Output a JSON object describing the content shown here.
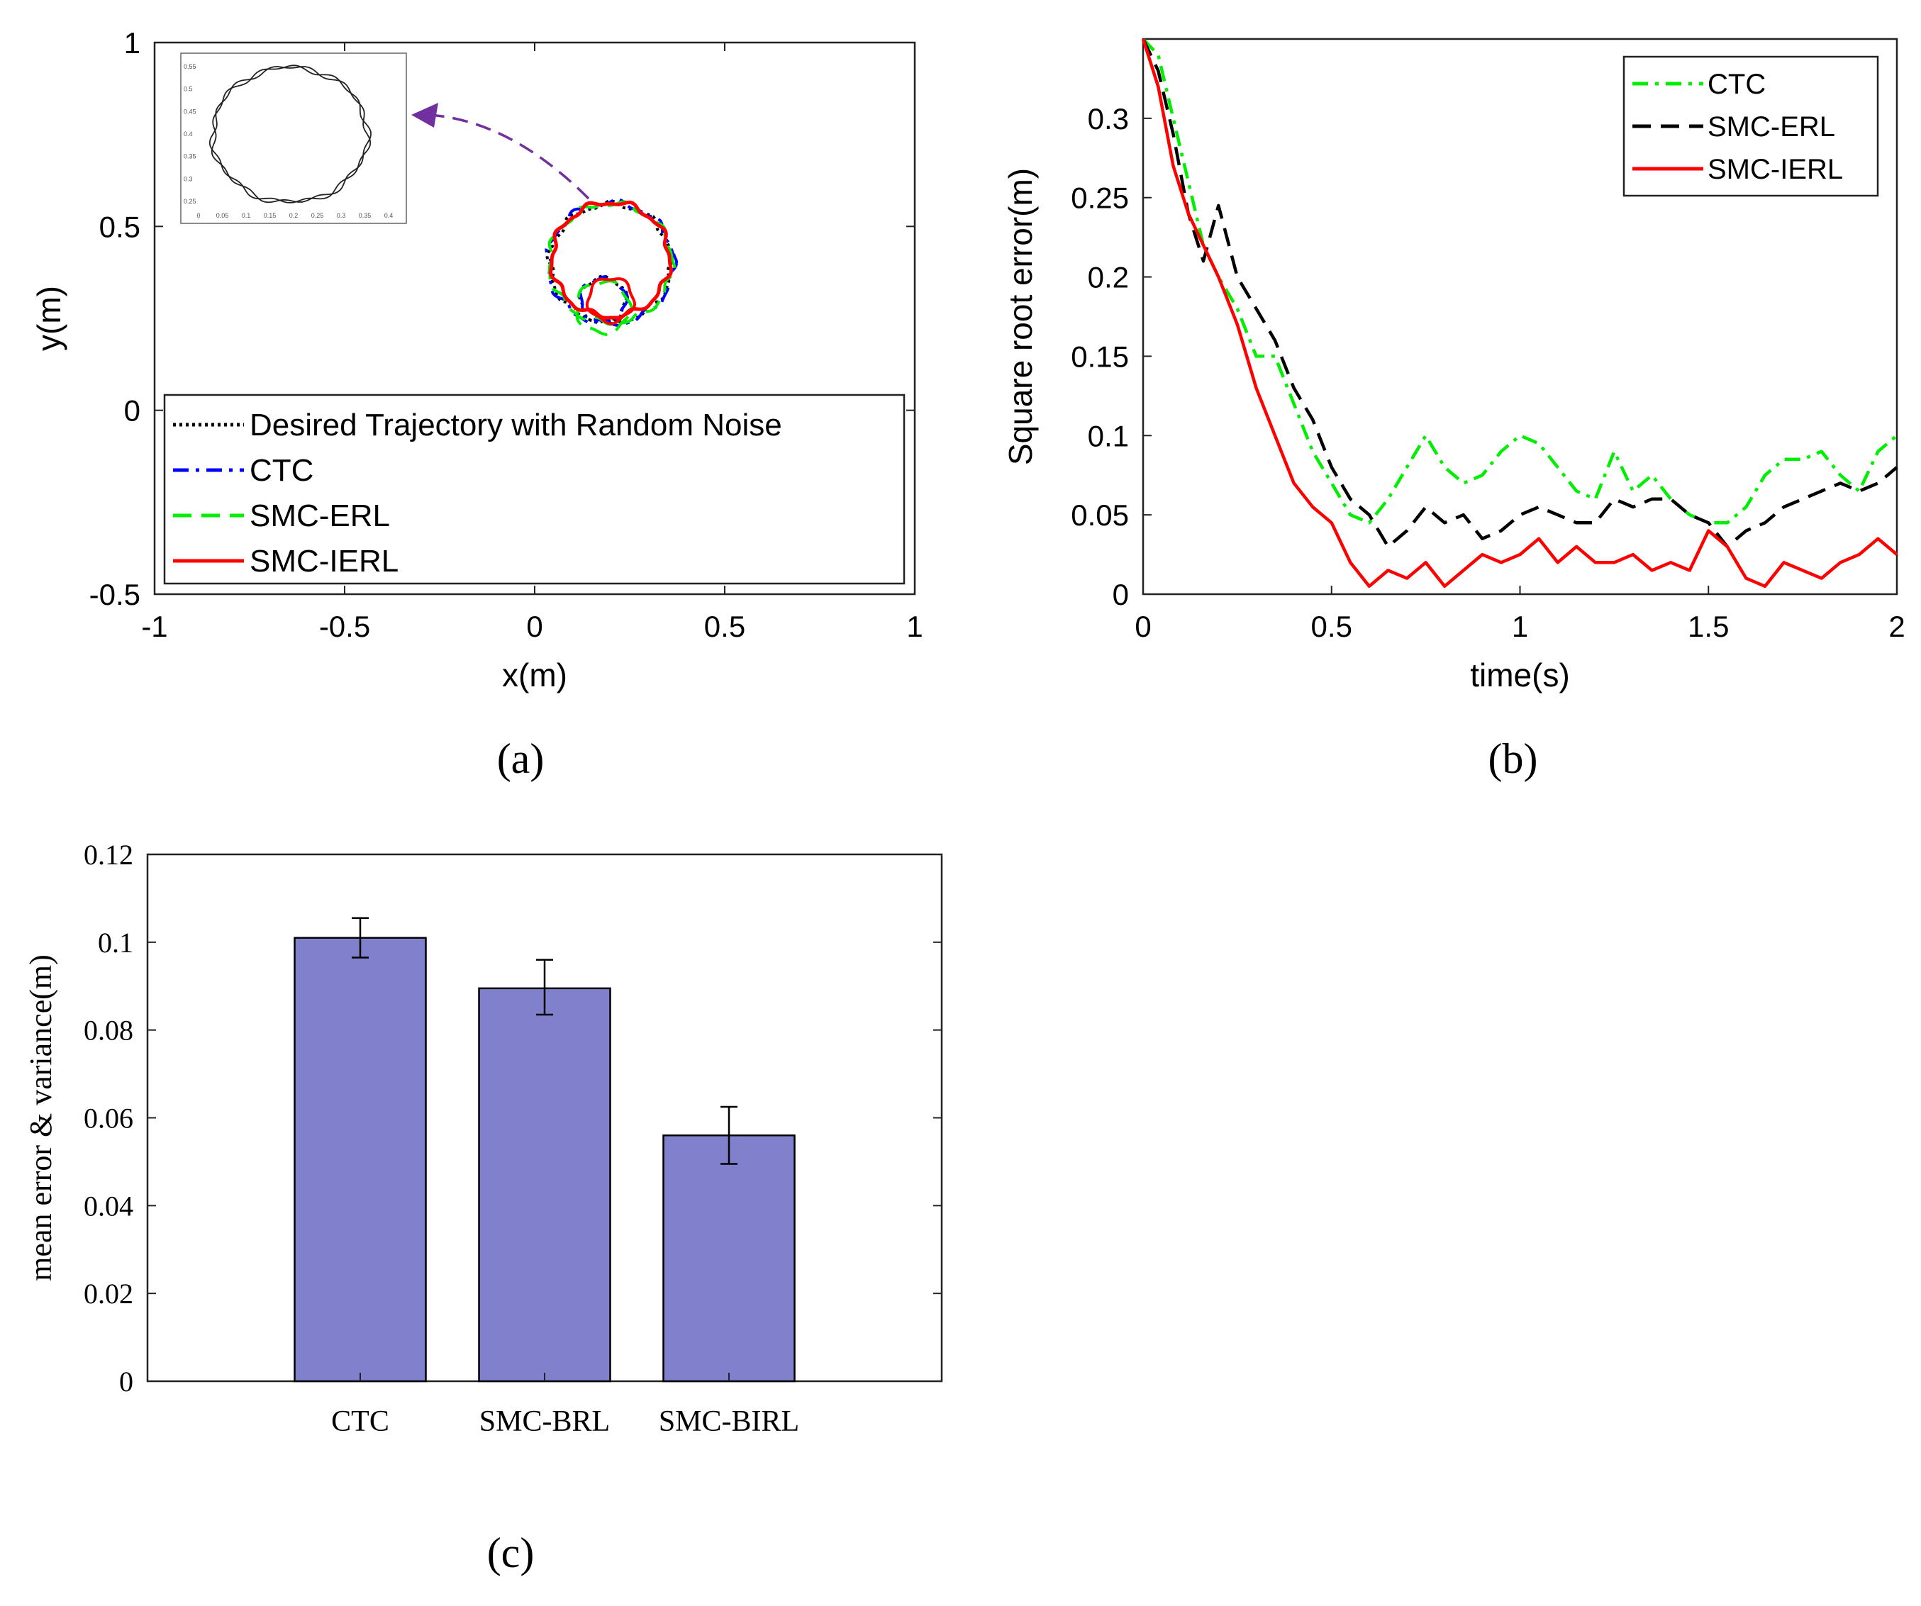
{
  "chart_data": [
    {
      "id": "a",
      "type": "line",
      "caption": "(a)",
      "xlabel": "x(m)",
      "ylabel": "y(m)",
      "xlim": [
        -1,
        1
      ],
      "ylim": [
        -0.5,
        1
      ],
      "xticks": [
        -1,
        -0.5,
        0,
        0.5,
        1
      ],
      "yticks": [
        -0.5,
        0,
        0.5,
        1
      ],
      "xticklabels": [
        "-1",
        "-0.5",
        "0",
        "0.5",
        "1"
      ],
      "yticklabels": [
        "-0.5",
        "0",
        "0.5",
        "1"
      ],
      "legend": [
        "Desired Trajectory with Random Noise",
        "CTC",
        "SMC-ERL",
        "SMC-IERL"
      ],
      "legend_position": "bottom",
      "series": [
        {
          "name": "Desired Trajectory with Random Noise",
          "color": "#000000",
          "center": [
            0.2,
            0.4
          ],
          "radius": 0.16,
          "inner": [
            0.18,
            0.3,
            0.06
          ]
        },
        {
          "name": "CTC",
          "color": "#0000ff",
          "center": [
            0.2,
            0.4
          ],
          "radius": 0.165,
          "inner": [
            0.18,
            0.3,
            0.06
          ]
        },
        {
          "name": "SMC-ERL",
          "color": "#00ee00",
          "center": [
            0.2,
            0.4
          ],
          "radius": 0.162,
          "inner": [
            0.18,
            0.28,
            0.07
          ]
        },
        {
          "name": "SMC-IERL",
          "color": "#ff0000",
          "center": [
            0.2,
            0.41
          ],
          "radius": 0.155,
          "inner": [
            0.2,
            0.3,
            0.06
          ]
        }
      ],
      "inset": {
        "description": "zoomed circle",
        "xticklabels": [
          "0",
          "0.05",
          "0.1",
          "0.15",
          "0.2",
          "0.25",
          "0.3",
          "0.35",
          "0.4"
        ],
        "yticklabels": [
          "0.55",
          "0.5",
          "0.45",
          "0.4",
          "0.35",
          "0.3",
          "0.25"
        ]
      },
      "arrow_color": "#7030a0"
    },
    {
      "id": "b",
      "type": "line",
      "caption": "(b)",
      "xlabel": "time(s)",
      "ylabel": "Square root error(m)",
      "xlim": [
        0,
        2
      ],
      "ylim": [
        0,
        0.35
      ],
      "xticks": [
        0,
        0.5,
        1,
        1.5,
        2
      ],
      "yticks": [
        0,
        0.05,
        0.1,
        0.15,
        0.2,
        0.25,
        0.3
      ],
      "xticklabels": [
        "0",
        "0.5",
        "1",
        "1.5",
        "2"
      ],
      "yticklabels": [
        "0",
        "0.05",
        "0.1",
        "0.15",
        "0.2",
        "0.25",
        "0.3"
      ],
      "legend": [
        "CTC",
        "SMC-ERL",
        "SMC-IERL"
      ],
      "legend_position": "top-right",
      "series": [
        {
          "name": "CTC",
          "color": "#00ee00",
          "dash": "dashdot",
          "x": [
            0,
            0.04,
            0.08,
            0.12,
            0.16,
            0.2,
            0.25,
            0.3,
            0.35,
            0.4,
            0.45,
            0.5,
            0.55,
            0.6,
            0.65,
            0.7,
            0.75,
            0.8,
            0.85,
            0.9,
            0.95,
            1.0,
            1.05,
            1.1,
            1.15,
            1.2,
            1.25,
            1.3,
            1.35,
            1.4,
            1.45,
            1.5,
            1.55,
            1.6,
            1.65,
            1.7,
            1.75,
            1.8,
            1.85,
            1.9,
            1.95,
            2.0
          ],
          "y": [
            0.35,
            0.34,
            0.3,
            0.26,
            0.22,
            0.2,
            0.18,
            0.15,
            0.15,
            0.12,
            0.09,
            0.07,
            0.05,
            0.045,
            0.06,
            0.08,
            0.1,
            0.08,
            0.07,
            0.075,
            0.09,
            0.1,
            0.095,
            0.08,
            0.065,
            0.06,
            0.09,
            0.065,
            0.075,
            0.06,
            0.05,
            0.045,
            0.045,
            0.055,
            0.075,
            0.085,
            0.085,
            0.09,
            0.075,
            0.065,
            0.09,
            0.1
          ]
        },
        {
          "name": "SMC-ERL",
          "color": "#000000",
          "dash": "dashed",
          "x": [
            0,
            0.04,
            0.08,
            0.12,
            0.16,
            0.2,
            0.25,
            0.3,
            0.35,
            0.4,
            0.45,
            0.5,
            0.55,
            0.6,
            0.65,
            0.7,
            0.75,
            0.8,
            0.85,
            0.9,
            0.95,
            1.0,
            1.05,
            1.1,
            1.15,
            1.2,
            1.25,
            1.3,
            1.35,
            1.4,
            1.45,
            1.5,
            1.55,
            1.6,
            1.65,
            1.7,
            1.75,
            1.8,
            1.85,
            1.9,
            1.95,
            2.0
          ],
          "y": [
            0.35,
            0.33,
            0.29,
            0.24,
            0.21,
            0.245,
            0.2,
            0.18,
            0.16,
            0.13,
            0.11,
            0.08,
            0.06,
            0.05,
            0.03,
            0.04,
            0.055,
            0.045,
            0.05,
            0.035,
            0.04,
            0.05,
            0.055,
            0.05,
            0.045,
            0.045,
            0.06,
            0.055,
            0.06,
            0.06,
            0.05,
            0.045,
            0.03,
            0.04,
            0.045,
            0.055,
            0.06,
            0.065,
            0.07,
            0.065,
            0.07,
            0.08
          ]
        },
        {
          "name": "SMC-IERL",
          "color": "#ff0000",
          "dash": "solid",
          "x": [
            0,
            0.04,
            0.08,
            0.12,
            0.16,
            0.2,
            0.25,
            0.3,
            0.35,
            0.4,
            0.45,
            0.5,
            0.55,
            0.6,
            0.65,
            0.7,
            0.75,
            0.8,
            0.85,
            0.9,
            0.95,
            1.0,
            1.05,
            1.1,
            1.15,
            1.2,
            1.25,
            1.3,
            1.35,
            1.4,
            1.45,
            1.5,
            1.55,
            1.6,
            1.65,
            1.7,
            1.75,
            1.8,
            1.85,
            1.9,
            1.95,
            2.0
          ],
          "y": [
            0.35,
            0.32,
            0.27,
            0.24,
            0.22,
            0.2,
            0.17,
            0.13,
            0.1,
            0.07,
            0.055,
            0.045,
            0.02,
            0.005,
            0.015,
            0.01,
            0.02,
            0.005,
            0.015,
            0.025,
            0.02,
            0.025,
            0.035,
            0.02,
            0.03,
            0.02,
            0.02,
            0.025,
            0.015,
            0.02,
            0.015,
            0.04,
            0.03,
            0.01,
            0.005,
            0.02,
            0.015,
            0.01,
            0.02,
            0.025,
            0.035,
            0.025
          ]
        }
      ]
    },
    {
      "id": "c",
      "type": "bar",
      "caption": "(c)",
      "xlabel": "",
      "ylabel": "mean error & variance(m)",
      "ylim": [
        0,
        0.12
      ],
      "yticks": [
        0,
        0.02,
        0.04,
        0.06,
        0.08,
        0.1,
        0.12
      ],
      "yticklabels": [
        "0",
        "0.02",
        "0.04",
        "0.06",
        "0.08",
        "0.1",
        "0.12"
      ],
      "categories": [
        "CTC",
        "SMC-BRL",
        "SMC-BIRL"
      ],
      "values": [
        0.101,
        0.0895,
        0.056
      ],
      "error_low": [
        0.0965,
        0.0835,
        0.0495
      ],
      "error_high": [
        0.1055,
        0.096,
        0.0625
      ],
      "bar_color": "#8080cc"
    }
  ]
}
